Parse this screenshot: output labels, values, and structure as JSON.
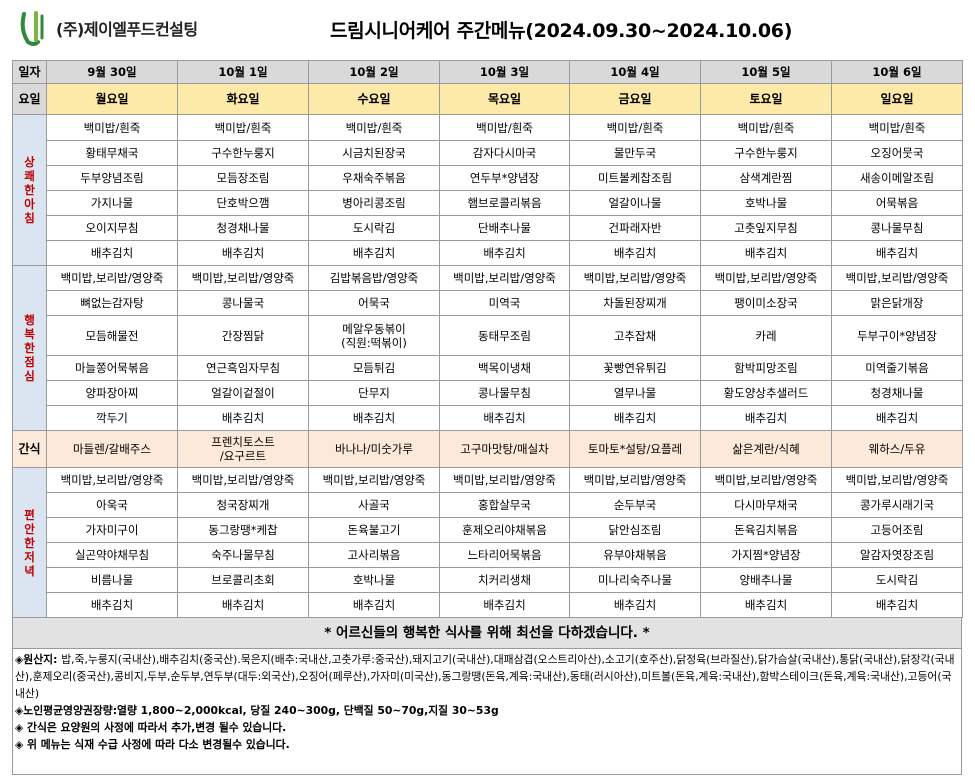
{
  "header": {
    "company": "(주)제이엘푸드컨설팅",
    "title": "드림시니어케어 주간메뉴(2024.09.30~2024.10.06)"
  },
  "colors": {
    "header_gray": "#d9d9d9",
    "day_yellow": "#fdeaa8",
    "meal_blue": "#dbe5f1",
    "meal_red": "#c00000",
    "snack_pink": "#fde9d9",
    "logo_green": "#2e8b3c"
  },
  "table": {
    "date_label": "일자",
    "day_label": "요일",
    "dates": [
      "9월 30일",
      "10월 1일",
      "10월 2일",
      "10월 3일",
      "10월 4일",
      "10월 5일",
      "10월 6일"
    ],
    "days": [
      "월요일",
      "화요일",
      "수요일",
      "목요일",
      "금요일",
      "토요일",
      "일요일"
    ],
    "breakfast": {
      "label": "상쾌한아침",
      "rows": [
        [
          "백미밥/흰죽",
          "백미밥/흰죽",
          "백미밥/흰죽",
          "백미밥/흰죽",
          "백미밥/흰죽",
          "백미밥/흰죽",
          "백미밥/흰죽"
        ],
        [
          "황태무채국",
          "구수한누룽지",
          "시금치된장국",
          "감자다시마국",
          "물만두국",
          "구수한누룽지",
          "오징어뭇국"
        ],
        [
          "두부양념조림",
          "모듬장조림",
          "우채숙주볶음",
          "연두부*양념장",
          "미트볼케찹조림",
          "삼색계란찜",
          "새송이메알조림"
        ],
        [
          "가지나물",
          "단호박으깸",
          "병아리콩조림",
          "햄브로콜리볶음",
          "얼갈이나물",
          "호박나물",
          "어묵볶음"
        ],
        [
          "오이지무침",
          "청경채나물",
          "도시락김",
          "단배추나물",
          "건파래자반",
          "고춧잎지무침",
          "콩나물무침"
        ],
        [
          "배추김치",
          "배추김치",
          "배추김치",
          "배추김치",
          "배추김치",
          "배추김치",
          "배추김치"
        ]
      ]
    },
    "lunch": {
      "label": "행복한점심",
      "rows": [
        [
          "백미밥,보리밥/영양죽",
          "백미밥,보리밥/영양죽",
          "김밥볶음밥/영양죽",
          "백미밥,보리밥/영양죽",
          "백미밥,보리밥/영양죽",
          "백미밥,보리밥/영양죽",
          "백미밥,보리밥/영양죽"
        ],
        [
          "뼈없는감자탕",
          "콩나물국",
          "어묵국",
          "미역국",
          "차돌된장찌개",
          "팽이미소장국",
          "맑은닭개장"
        ],
        [
          "모듬해물전",
          "간장찜닭",
          "메알우동볶이",
          "동태무조림",
          "고추잡채",
          "카레",
          "두부구이*양념장"
        ],
        [
          "마늘쫑어묵볶음",
          "연근흑임자무침",
          "모듬튀김",
          "백목이냉채",
          "꽃빵연유튀김",
          "함박피망조림",
          "미역줄기볶음"
        ],
        [
          "양파장아찌",
          "얼갈이겉절이",
          "단무지",
          "콩나물무침",
          "열무나물",
          "황도양상추샐러드",
          "청경채나물"
        ],
        [
          "깍두기",
          "배추김치",
          "배추김치",
          "배추김치",
          "배추김치",
          "배추김치",
          "배추김치"
        ]
      ],
      "note_wed": "(직원:떡볶이)"
    },
    "snack": {
      "label": "간식",
      "items": [
        "마들렌/갈배주스",
        "프렌치토스트",
        "바나나/미숫가루",
        "고구마맛탕/매실차",
        "토마토*설탕/요플레",
        "삶은계란/식혜",
        "웨하스/두유"
      ],
      "tue_line2": "/요구르트"
    },
    "dinner": {
      "label": "편안한저녁",
      "rows": [
        [
          "백미밥,보리밥/영양죽",
          "백미밥,보리밥/영양죽",
          "백미밥,보리밥/영양죽",
          "백미밥,보리밥/영양죽",
          "백미밥,보리밥/영양죽",
          "백미밥,보리밥/영양죽",
          "백미밥,보리밥/영양죽"
        ],
        [
          "아욱국",
          "청국장찌개",
          "사골국",
          "홍합살무국",
          "순두부국",
          "다시마무채국",
          "콩가루시래기국"
        ],
        [
          "가자미구이",
          "동그랑땡*케찹",
          "돈육불고기",
          "훈제오리야채볶음",
          "닭안심조림",
          "돈육김치볶음",
          "고등어조림"
        ],
        [
          "실곤약야채무침",
          "숙주나물무침",
          "고사리볶음",
          "느타리어묵볶음",
          "유부야채볶음",
          "가지찜*양념장",
          "알감자엿장조림"
        ],
        [
          "비름나물",
          "브로콜리초회",
          "호박나물",
          "치커리생채",
          "미나리숙주나물",
          "양배추나물",
          "도시락김"
        ],
        [
          "배추김치",
          "배추김치",
          "배추김치",
          "배추김치",
          "배추김치",
          "배추김치",
          "배추김치"
        ]
      ]
    }
  },
  "note": "* 어르신들의 행복한 식사를 위해 최선을 다하겠습니다. *",
  "footer": {
    "origin_label": "◈원산지: ",
    "origin_text": "밥,죽,누룽지(국내산),배추김치(중국산).묵은지(배추:국내산,고춧가루:중국산),돼지고기(국내산),대패삼겹(오스트리아산),소고기(호주산),닭정육(브라질산),닭가슴살(국내산),통닭(국내산),닭장각(국내산),훈제오리(중국산),콩비지,두부,순두부,연두부(대두:외국산),오징어(페루산),가자미(미국산),동그랑땡(돈육,계육:국내산),동태(러시아산),미트볼(돈육,계육:국내산),함박스테이크(돈육,계육:국내산),고등어(국내산)",
    "nutrition": "◈노인평균영양권장량:열량 1,800~2,000kcal, 당질 240~300g, 단백질 50~70g,지질 30~53g",
    "snack_notice": "◈ 간식은 요양원의 사정에 따라서 추가,변경 될수 있습니다.",
    "change_notice": "◈ 위 메뉴는 식재 수급 사정에 따라 다소 변경될수 있습니다."
  }
}
